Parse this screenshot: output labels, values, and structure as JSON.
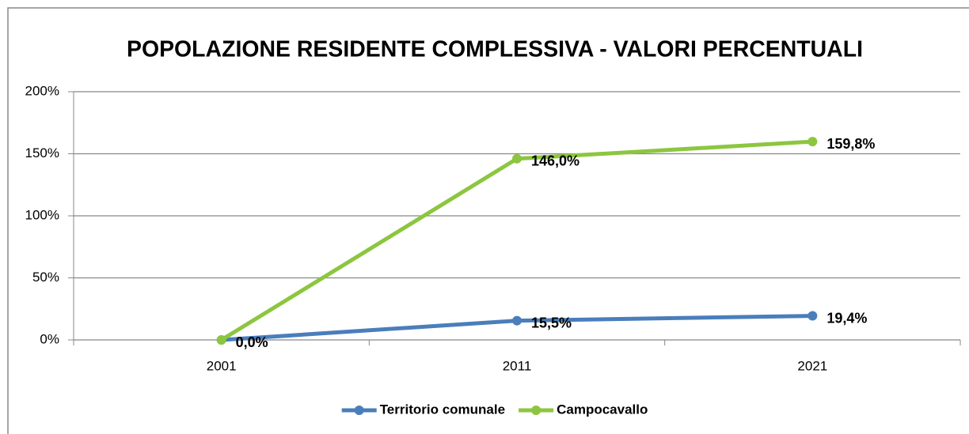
{
  "chart_data": {
    "type": "line",
    "title": "POPOLAZIONE RESIDENTE COMPLESSIVA - VALORI PERCENTUALI",
    "categories": [
      "2001",
      "2011",
      "2021"
    ],
    "series": [
      {
        "name": "Territorio comunale",
        "color": "#4a7ebb",
        "values": [
          0,
          15.5,
          19.4
        ],
        "value_labels": [
          "0,0%",
          "15,5%",
          "19,4%"
        ]
      },
      {
        "name": "Campocavallo",
        "color": "#8cc63f",
        "values": [
          0,
          146.0,
          159.8
        ],
        "value_labels": [
          null,
          "146,0%",
          "159,8%"
        ]
      }
    ],
    "ylim": [
      0,
      200
    ],
    "yticks": [
      {
        "value": 0,
        "label": "0%"
      },
      {
        "value": 50,
        "label": "50%"
      },
      {
        "value": 100,
        "label": "100%"
      },
      {
        "value": 150,
        "label": "150%"
      },
      {
        "value": 200,
        "label": "200%"
      }
    ],
    "grid": true,
    "legend": "bottom"
  }
}
